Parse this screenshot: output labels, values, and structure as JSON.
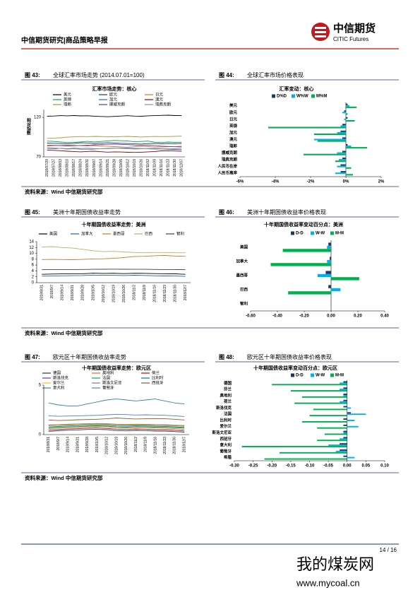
{
  "header": {
    "title": "中信期货研究|商品策略早报",
    "logo_cn": "中信期货",
    "logo_en": "CITIC Futures"
  },
  "figures": [
    {
      "number": "图 43:",
      "caption": "全球汇率市场走势 (2014.07.01=100)"
    },
    {
      "number": "图 44:",
      "caption": "全球汇率市场价格表现"
    },
    {
      "number": "图 45:",
      "caption": "美洲十年期国债收益率走势"
    },
    {
      "number": "图 46:",
      "caption": "美洲十年期国债收益率价格表现"
    },
    {
      "number": "图 47:",
      "caption": "欧元区十年期国债收益率走势"
    },
    {
      "number": "图 48:",
      "caption": "欧元区十年期国债收益率价格表现"
    }
  ],
  "sources": [
    "资料来源：Wind  中信期货研究部",
    "资料来源：Wind  中信期货研究部",
    "资料来源：Wind  中信期货研究部"
  ],
  "footer": {
    "page": "14 / 16"
  },
  "watermark": {
    "name": "我的煤炭网",
    "url": "www.mycoal.cn"
  },
  "chart_data": [
    {
      "type": "line",
      "title": "汇率市场走势：核心",
      "y_label": "相对指数",
      "ylim": [
        70,
        130
      ],
      "yticks": [
        70,
        120
      ],
      "categories": [
        "2018/07/20",
        "2018/07/27",
        "2018/08/03",
        "2018/08/10",
        "2018/08/17",
        "2018/08/24",
        "2018/08/31",
        "2018/09/07",
        "2018/09/14",
        "2018/09/21",
        "2018/09/28",
        "2018/10/05",
        "2018/10/12",
        "2018/10/19",
        "2018/10/26",
        "2018/11/02",
        "2018/11/09",
        "2018/11/16",
        "2018/11/23",
        "2018/11/30",
        "2018/12/07"
      ],
      "series": [
        {
          "name": "美元",
          "color": "#000000",
          "values": [
            121.5,
            121.8,
            122.3,
            122.0,
            122.4,
            121.9,
            122.1,
            121.6,
            121.2,
            120.9,
            121.3,
            121.8,
            122.2,
            121.7,
            121.5,
            122.0,
            122.3,
            122.6,
            122.8,
            122.4,
            122.5
          ]
        },
        {
          "name": "欧元",
          "color": "#1f3864",
          "values": [
            87.5,
            87.2,
            86.8,
            86.5,
            86.9,
            87.8,
            87.6,
            87.0,
            87.4,
            88.0,
            87.6,
            87.2,
            86.9,
            86.5,
            86.2,
            86.8,
            87.1,
            86.6,
            86.9,
            86.7,
            87.0
          ]
        },
        {
          "name": "日元",
          "color": "#e07020",
          "values": [
            84.0,
            84.3,
            84.5,
            84.8,
            84.6,
            84.2,
            84.0,
            84.3,
            83.9,
            83.5,
            83.0,
            82.6,
            82.3,
            82.8,
            83.4,
            83.0,
            82.6,
            82.5,
            82.8,
            82.9,
            83.6
          ]
        },
        {
          "name": "英镑",
          "color": "#00a050",
          "values": [
            90.0,
            89.5,
            88.8,
            88.2,
            88.4,
            89.0,
            89.6,
            88.9,
            89.5,
            90.2,
            90.8,
            90.4,
            90.1,
            89.2,
            89.5,
            90.0,
            88.6,
            88.2,
            88.8,
            88.4,
            88.6
          ]
        },
        {
          "name": "加元",
          "color": "#1f6fd0",
          "values": [
            80.5,
            80.2,
            80.8,
            80.4,
            81.0,
            80.6,
            80.9,
            80.5,
            80.4,
            80.6,
            80.9,
            81.2,
            81.0,
            80.8,
            80.6,
            80.2,
            79.9,
            80.1,
            79.6,
            79.4,
            79.0
          ]
        },
        {
          "name": "澳元",
          "color": "#8b0000",
          "values": [
            78.6,
            78.2,
            77.8,
            77.2,
            76.8,
            76.4,
            76.9,
            77.2,
            76.5,
            76.0,
            76.4,
            76.2,
            75.8,
            75.6,
            75.9,
            76.4,
            76.8,
            77.6,
            77.8,
            77.4,
            77.2
          ]
        },
        {
          "name": "瑞郎",
          "color": "#9a9a40",
          "values": [
            93.5,
            93.8,
            94.2,
            95.0,
            95.3,
            95.8,
            95.6,
            96.0,
            95.8,
            95.6,
            95.3,
            95.8,
            96.0,
            95.5,
            95.2,
            95.6,
            95.9,
            95.7,
            95.8,
            96.1,
            96.3
          ]
        },
        {
          "name": "挪威克朗",
          "color": "#7030a0",
          "values": [
            85.0,
            84.6,
            84.2,
            83.8,
            84.1,
            84.5,
            84.8,
            85.2,
            85.6,
            86.0,
            86.2,
            85.8,
            85.5,
            85.0,
            84.6,
            85.0,
            84.4,
            83.6,
            83.2,
            82.8,
            82.5
          ]
        },
        {
          "name": "瑞典克朗",
          "color": "#909090",
          "values": [
            82.0,
            81.5,
            80.6,
            79.8,
            80.2,
            79.6,
            79.2,
            79.8,
            80.5,
            81.0,
            81.3,
            80.8,
            80.2,
            79.9,
            80.3,
            80.6,
            80.9,
            80.5,
            80.2,
            80.4,
            80.1
          ]
        }
      ]
    },
    {
      "type": "hbar",
      "title": "汇率变动：核心",
      "xlim": [
        -6,
        2
      ],
      "xticks": [
        {
          "value": -6,
          "label": "-6%"
        },
        {
          "value": -4,
          "label": "-4%"
        },
        {
          "value": -2,
          "label": "-2%"
        },
        {
          "value": 0,
          "label": "0%"
        },
        {
          "value": 2,
          "label": "2%"
        }
      ],
      "categories": [
        "美元",
        "欧元",
        "日元",
        "英镑",
        "加元",
        "澳元",
        "瑞郎",
        "挪威克朗",
        "瑞典克朗",
        "人民币在岸",
        "人民币离岸"
      ],
      "series": [
        {
          "name": "D%D",
          "color": "#1f3864",
          "values": [
            0.1,
            -0.1,
            0.1,
            -0.2,
            -0.3,
            -0.2,
            0.1,
            -0.2,
            -0.2,
            -0.3,
            -0.3
          ]
        },
        {
          "name": "W%W",
          "color": "#00b0f0",
          "values": [
            0.2,
            -0.2,
            -0.1,
            -0.3,
            -0.5,
            -1.8,
            0.3,
            -0.5,
            -0.4,
            -0.5,
            -0.6
          ]
        },
        {
          "name": "M%M",
          "color": "#00b050",
          "values": [
            0.6,
            0.1,
            0.5,
            -4.4,
            -1.8,
            -1.6,
            1.2,
            -2.4,
            -0.6,
            0.3,
            0.4
          ]
        }
      ]
    },
    {
      "type": "line",
      "title": "十年期国债收益率走势：美洲",
      "ylim": [
        0,
        14
      ],
      "yticks": [
        0,
        2,
        4,
        6,
        8,
        10,
        12,
        14
      ],
      "categories": [
        "2018/8/31",
        "2018/9/7",
        "2018/9/14",
        "2018/9/21",
        "2018/9/28",
        "2018/10/5",
        "2018/10/12",
        "2018/10/19",
        "2018/10/26",
        "2018/11/2",
        "2018/11/9",
        "2018/11/16",
        "2018/11/23",
        "2018/11/30",
        "2018/12/7"
      ],
      "series": [
        {
          "name": "美国",
          "color": "#000000",
          "values": [
            2.86,
            2.94,
            2.99,
            3.07,
            3.06,
            3.23,
            3.16,
            3.2,
            3.08,
            3.21,
            3.19,
            3.08,
            3.04,
            3.01,
            2.85
          ]
        },
        {
          "name": "加拿大",
          "color": "#1f5fbf",
          "values": [
            2.22,
            2.28,
            2.34,
            2.39,
            2.43,
            2.58,
            2.51,
            2.52,
            2.44,
            2.54,
            2.47,
            2.35,
            2.3,
            2.27,
            2.14
          ]
        },
        {
          "name": "墨西哥",
          "color": "#c07a30",
          "values": [
            7.9,
            7.95,
            7.9,
            7.85,
            7.95,
            8.1,
            8.15,
            8.3,
            8.6,
            8.9,
            9.0,
            9.2,
            9.3,
            9.1,
            9.0
          ]
        },
        {
          "name": "巴西",
          "color": "#b5b56a",
          "values": [
            12.2,
            12.3,
            12.0,
            11.8,
            11.4,
            10.9,
            10.6,
            10.7,
            10.5,
            10.3,
            10.2,
            10.3,
            10.3,
            10.2,
            10.2
          ]
        },
        {
          "name": "智利",
          "color": "#404040",
          "values": [
            4.45,
            4.45,
            4.48,
            4.5,
            4.52,
            4.55,
            4.58,
            4.6,
            4.58,
            4.55,
            4.55,
            4.52,
            4.5,
            4.48,
            4.45
          ]
        }
      ]
    },
    {
      "type": "hbar",
      "title": "十年期国债收益率变动百分点：美洲",
      "xlim": [
        -0.6,
        0.4
      ],
      "xticks": [
        {
          "value": -0.6,
          "label": "-0.60"
        },
        {
          "value": -0.4,
          "label": "-0.40"
        },
        {
          "value": -0.2,
          "label": "-0.20"
        },
        {
          "value": 0,
          "label": "0.00"
        },
        {
          "value": 0.2,
          "label": "0.20"
        },
        {
          "value": 0.4,
          "label": "0.40"
        }
      ],
      "categories": [
        "美国",
        "加拿大",
        "墨西哥",
        "巴西",
        "智利"
      ],
      "series": [
        {
          "name": "D-D",
          "color": "#1f3864",
          "values": [
            -0.02,
            -0.01,
            -0.04,
            -0.02,
            0
          ]
        },
        {
          "name": "W-W",
          "color": "#00b0f0",
          "values": [
            -0.03,
            -0.03,
            -0.1,
            0.07,
            0
          ]
        },
        {
          "name": "M-M",
          "color": "#00b050",
          "values": [
            -0.36,
            -0.45,
            0.21,
            -0.32,
            0
          ]
        }
      ]
    },
    {
      "type": "line",
      "title": "十年期国债收益率走势：欧元区",
      "ylim": [
        0,
        5
      ],
      "yticks": [
        0,
        5
      ],
      "categories": [
        "2018/8/31",
        "2018/9/7",
        "2018/9/14",
        "2018/9/21",
        "2018/9/28",
        "2018/10/5",
        "2018/10/12",
        "2018/10/19",
        "2018/10/26",
        "2018/11/2",
        "2018/11/9",
        "2018/11/16",
        "2018/11/23",
        "2018/11/30",
        "2018/12/7"
      ],
      "series": [
        {
          "name": "德国",
          "color": "#1f3864",
          "values": [
            0.33,
            0.39,
            0.45,
            0.47,
            0.52,
            0.53,
            0.5,
            0.41,
            0.38,
            0.43,
            0.41,
            0.36,
            0.36,
            0.31,
            0.25
          ]
        },
        {
          "name": "奥地利",
          "color": "#e07020",
          "values": [
            0.62,
            0.67,
            0.72,
            0.75,
            0.8,
            0.82,
            0.79,
            0.7,
            0.68,
            0.73,
            0.72,
            0.67,
            0.66,
            0.6,
            0.52
          ]
        },
        {
          "name": "荷兰",
          "color": "#c00000",
          "values": [
            0.46,
            0.52,
            0.58,
            0.6,
            0.66,
            0.67,
            0.63,
            0.55,
            0.52,
            0.57,
            0.55,
            0.5,
            0.5,
            0.44,
            0.37
          ]
        },
        {
          "name": "斯洛伐克",
          "color": "#7030a0",
          "values": [
            0.95,
            0.97,
            1.0,
            1.02,
            1.05,
            1.06,
            1.05,
            1.0,
            0.98,
            1.0,
            1.0,
            0.97,
            0.96,
            0.93,
            0.9
          ]
        },
        {
          "name": "法国",
          "color": "#00b050",
          "values": [
            0.68,
            0.72,
            0.78,
            0.8,
            0.85,
            0.88,
            0.85,
            0.78,
            0.76,
            0.8,
            0.79,
            0.75,
            0.74,
            0.7,
            0.66
          ]
        },
        {
          "name": "比利时",
          "color": "#0070c0",
          "values": [
            0.78,
            0.82,
            0.88,
            0.91,
            0.95,
            0.98,
            0.95,
            0.88,
            0.86,
            0.9,
            0.88,
            0.84,
            0.83,
            0.78,
            0.73
          ]
        },
        {
          "name": "爱尔兰",
          "color": "#ffc000",
          "values": [
            0.9,
            0.93,
            0.97,
            1.0,
            1.03,
            1.05,
            1.02,
            0.98,
            0.95,
            0.97,
            0.96,
            0.92,
            0.91,
            0.87,
            0.82
          ]
        },
        {
          "name": "斯洛文尼亚",
          "color": "#808080",
          "values": [
            0.98,
            1.0,
            1.05,
            1.08,
            1.1,
            1.12,
            1.1,
            1.05,
            1.03,
            1.05,
            1.04,
            1.0,
            0.99,
            0.95,
            0.92
          ]
        },
        {
          "name": "西班牙",
          "color": "#8b5a2b",
          "values": [
            1.48,
            1.42,
            1.45,
            1.5,
            1.52,
            1.55,
            1.6,
            1.68,
            1.62,
            1.58,
            1.6,
            1.62,
            1.6,
            1.55,
            1.48
          ]
        },
        {
          "name": "意大利",
          "color": "#31859c",
          "values": [
            3.2,
            3.0,
            2.9,
            2.9,
            3.1,
            3.3,
            3.5,
            3.6,
            3.5,
            3.4,
            3.5,
            3.6,
            3.4,
            3.2,
            3.1
          ]
        },
        {
          "name": "葡萄牙",
          "color": "#4f81bd",
          "values": [
            1.9,
            1.85,
            1.88,
            1.9,
            1.92,
            1.95,
            2.0,
            2.05,
            2.02,
            1.98,
            2.0,
            1.98,
            1.95,
            1.9,
            1.83
          ]
        }
      ]
    },
    {
      "type": "hbar",
      "title": "十年期国债收益率变动百分点：欧元区",
      "xlim": [
        -0.3,
        0.1
      ],
      "xticks": [
        {
          "value": -0.3,
          "label": "-0.30"
        },
        {
          "value": -0.25,
          "label": "-0.25"
        },
        {
          "value": -0.2,
          "label": "-0.20"
        },
        {
          "value": -0.15,
          "label": "-0.15"
        },
        {
          "value": -0.1,
          "label": "-0.10"
        },
        {
          "value": -0.05,
          "label": "-0.05"
        },
        {
          "value": 0,
          "label": "0.00"
        },
        {
          "value": 0.05,
          "label": "0.05"
        },
        {
          "value": 0.1,
          "label": "0.10"
        }
      ],
      "categories": [
        "德国",
        "芬兰",
        "奥地利",
        "荷兰",
        "斯洛伐克",
        "法国",
        "比利时",
        "爱尔兰",
        "斯洛文尼亚",
        "西班牙",
        "意大利",
        "葡萄牙",
        "希腊"
      ],
      "series": [
        {
          "name": "D-D",
          "color": "#1f3864",
          "values": [
            -0.01,
            -0.01,
            -0.01,
            -0.01,
            -0.01,
            0.01,
            -0.01,
            -0.01,
            -0.01,
            -0.01,
            -0.02,
            -0.02,
            -0.01
          ]
        },
        {
          "name": "W-W",
          "color": "#00b0f0",
          "values": [
            -0.02,
            -0.02,
            -0.01,
            -0.02,
            0.01,
            0.05,
            0.02,
            0.03,
            -0.01,
            -0.02,
            -0.05,
            -0.03,
            0.02
          ]
        },
        {
          "name": "M-M",
          "color": "#00b050",
          "values": [
            -0.2,
            -0.15,
            -0.12,
            -0.14,
            -0.09,
            -0.1,
            -0.12,
            -0.08,
            -0.06,
            -0.08,
            -0.28,
            -0.18,
            -0.22
          ]
        }
      ]
    }
  ]
}
